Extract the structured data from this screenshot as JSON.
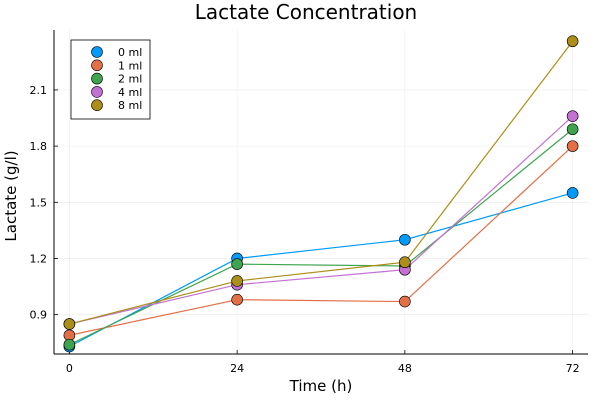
{
  "chart_data": {
    "type": "line",
    "title": "Lactate Concentration",
    "xlabel": "Time (h)",
    "ylabel": "Lactate (g/l)",
    "x": [
      0,
      24,
      48,
      72
    ],
    "x_ticks": [
      "0",
      "24",
      "48",
      "72"
    ],
    "y_ticks": [
      "0.9",
      "1.2",
      "1.5",
      "1.8",
      "2.1"
    ],
    "xlim": [
      -2.2,
      74.2
    ],
    "ylim": [
      0.69,
      2.42
    ],
    "grid": true,
    "legend_position": "top-left",
    "series": [
      {
        "name": "0 ml",
        "color": "#009AFA",
        "values": [
          0.73,
          1.2,
          1.3,
          1.55
        ]
      },
      {
        "name": "1 ml",
        "color": "#E36F47",
        "values": [
          0.79,
          0.98,
          0.97,
          1.8
        ]
      },
      {
        "name": "2 ml",
        "color": "#3EA44E",
        "values": [
          0.74,
          1.17,
          1.16,
          1.89
        ]
      },
      {
        "name": "4 ml",
        "color": "#C371D2",
        "values": [
          0.85,
          1.06,
          1.14,
          1.96
        ]
      },
      {
        "name": "8 ml",
        "color": "#AC8E18",
        "values": [
          0.85,
          1.08,
          1.18,
          2.36
        ]
      }
    ]
  }
}
